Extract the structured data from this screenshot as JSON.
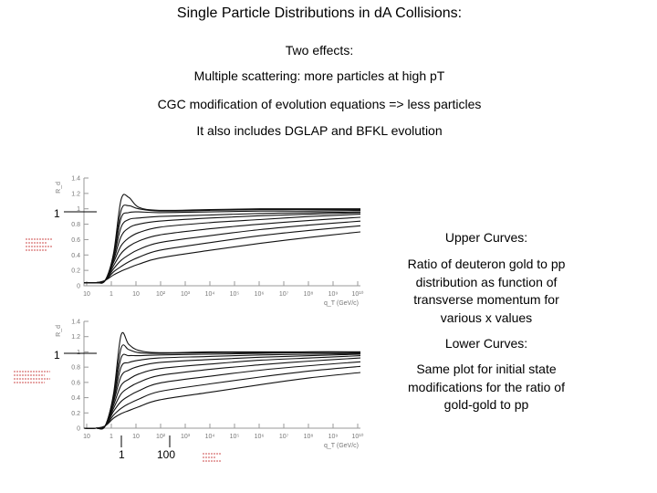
{
  "slide": {
    "title": "Single Particle Distributions in dA Collisions:",
    "lines": [
      "Two effects:",
      "Multiple scattering:  more particles at high pT",
      "CGC modification of evolution equations => less particles",
      "It also includes DGLAP and BFKL evolution"
    ],
    "upper_heading": "Upper Curves:",
    "upper_text": "Ratio of deuteron gold to pp distribution as function of transverse momentum for various x values",
    "lower_heading": "Lower Curves:",
    "lower_text": "Same plot for initial state modifications for the ratio of gold-gold to pp",
    "marker_one_upper": "1",
    "marker_one_lower": "1",
    "marker_x_one": "1",
    "marker_x_hundred": "100"
  },
  "chart_data": [
    {
      "type": "line",
      "ylabel": "R_d",
      "xlabel": "q_T (GeV/c)",
      "xscale": "log",
      "xlim": [
        0.1,
        10000000000.0
      ],
      "ylim": [
        0,
        1.4
      ],
      "yticks": [
        0,
        0.2,
        0.4,
        0.6,
        0.8,
        1,
        1.2,
        1.4
      ],
      "xticks": [
        "10",
        "1",
        "10",
        "10²",
        "10³",
        "10⁴",
        "10⁵",
        "10⁶",
        "10⁷",
        "10⁸",
        "10⁹",
        "10¹⁰"
      ],
      "series": [
        {
          "x": [
            0.1,
            0.3,
            0.7,
            1.5,
            3,
            6,
            15,
            100,
            10000.0,
            1000000.0,
            100000000.0,
            10000000000.0
          ],
          "values": [
            0.04,
            0.04,
            0.07,
            0.42,
            1.12,
            1.15,
            1.02,
            0.98,
            0.99,
            1.0,
            1.0,
            1.0
          ]
        },
        {
          "x": [
            0.1,
            0.3,
            0.7,
            1.5,
            3,
            6,
            15,
            100,
            10000.0,
            1000000.0,
            100000000.0,
            10000000000.0
          ],
          "values": [
            0.04,
            0.04,
            0.07,
            0.4,
            0.98,
            1.04,
            1.0,
            0.97,
            0.98,
            0.99,
            0.99,
            0.99
          ]
        },
        {
          "x": [
            0.1,
            0.3,
            0.7,
            1.5,
            3,
            6,
            15,
            100,
            10000.0,
            1000000.0,
            100000000.0,
            10000000000.0
          ],
          "values": [
            0.04,
            0.04,
            0.07,
            0.38,
            0.88,
            0.95,
            0.96,
            0.95,
            0.96,
            0.97,
            0.97,
            0.98
          ]
        },
        {
          "x": [
            0.1,
            0.3,
            0.7,
            1.5,
            3,
            6,
            15,
            100,
            10000.0,
            1000000.0,
            100000000.0,
            10000000000.0
          ],
          "values": [
            0.04,
            0.04,
            0.07,
            0.36,
            0.76,
            0.86,
            0.88,
            0.9,
            0.92,
            0.94,
            0.95,
            0.96
          ]
        },
        {
          "x": [
            0.1,
            0.3,
            0.7,
            1.5,
            3,
            6,
            15,
            100,
            10000.0,
            1000000.0,
            100000000.0,
            10000000000.0
          ],
          "values": [
            0.04,
            0.04,
            0.07,
            0.33,
            0.64,
            0.75,
            0.8,
            0.84,
            0.88,
            0.91,
            0.93,
            0.95
          ]
        },
        {
          "x": [
            0.1,
            0.3,
            0.7,
            1.5,
            3,
            6,
            15,
            100,
            10000.0,
            1000000.0,
            100000000.0,
            10000000000.0
          ],
          "values": [
            0.04,
            0.04,
            0.07,
            0.3,
            0.52,
            0.62,
            0.69,
            0.76,
            0.82,
            0.86,
            0.9,
            0.93
          ]
        },
        {
          "x": [
            0.1,
            0.3,
            0.7,
            1.5,
            3,
            6,
            15,
            100,
            10000.0,
            1000000.0,
            100000000.0,
            10000000000.0
          ],
          "values": [
            0.04,
            0.04,
            0.07,
            0.26,
            0.42,
            0.51,
            0.58,
            0.66,
            0.74,
            0.8,
            0.85,
            0.89
          ]
        },
        {
          "x": [
            0.1,
            0.3,
            0.7,
            1.5,
            3,
            6,
            15,
            100,
            10000.0,
            1000000.0,
            100000000.0,
            10000000000.0
          ],
          "values": [
            0.04,
            0.04,
            0.07,
            0.22,
            0.33,
            0.4,
            0.47,
            0.56,
            0.65,
            0.73,
            0.79,
            0.84
          ]
        },
        {
          "x": [
            0.1,
            0.3,
            0.7,
            1.5,
            3,
            6,
            15,
            100,
            10000.0,
            1000000.0,
            100000000.0,
            10000000000.0
          ],
          "values": [
            0.04,
            0.04,
            0.07,
            0.18,
            0.25,
            0.31,
            0.37,
            0.46,
            0.56,
            0.65,
            0.72,
            0.78
          ]
        },
        {
          "x": [
            0.1,
            0.3,
            0.7,
            1.5,
            3,
            6,
            15,
            100,
            10000.0,
            1000000.0,
            100000000.0,
            10000000000.0
          ],
          "values": [
            0.04,
            0.04,
            0.07,
            0.14,
            0.19,
            0.23,
            0.28,
            0.36,
            0.46,
            0.55,
            0.63,
            0.7
          ]
        }
      ]
    },
    {
      "type": "line",
      "ylabel": "R_d",
      "xlabel": "q_T (GeV/c)",
      "xscale": "log",
      "xlim": [
        0.1,
        10000000000.0
      ],
      "ylim": [
        0,
        1.4
      ],
      "yticks": [
        0,
        0.2,
        0.4,
        0.6,
        0.8,
        1,
        1.2,
        1.4
      ],
      "xticks": [
        "10",
        "1",
        "10",
        "10²",
        "10³",
        "10⁴",
        "10⁵",
        "10⁶",
        "10⁷",
        "10⁸",
        "10⁹",
        "10¹⁰"
      ],
      "series": [
        {
          "x": [
            0.1,
            0.3,
            0.7,
            1.5,
            3,
            6,
            15,
            100,
            10000.0,
            1000000.0,
            100000000.0,
            10000000000.0
          ],
          "values": [
            0.0,
            0.0,
            0.03,
            0.45,
            1.22,
            1.1,
            1.02,
            0.99,
            1.0,
            1.0,
            1.0,
            1.0
          ]
        },
        {
          "x": [
            0.1,
            0.3,
            0.7,
            1.5,
            3,
            6,
            15,
            100,
            10000.0,
            1000000.0,
            100000000.0,
            10000000000.0
          ],
          "values": [
            0.0,
            0.0,
            0.03,
            0.42,
            1.05,
            1.03,
            0.99,
            0.98,
            0.99,
            0.99,
            1.0,
            1.0
          ]
        },
        {
          "x": [
            0.1,
            0.3,
            0.7,
            1.5,
            3,
            6,
            15,
            100,
            10000.0,
            1000000.0,
            100000000.0,
            10000000000.0
          ],
          "values": [
            0.0,
            0.0,
            0.03,
            0.4,
            0.92,
            0.95,
            0.95,
            0.96,
            0.97,
            0.98,
            0.99,
            0.99
          ]
        },
        {
          "x": [
            0.1,
            0.3,
            0.7,
            1.5,
            3,
            6,
            15,
            100,
            10000.0,
            1000000.0,
            100000000.0,
            10000000000.0
          ],
          "values": [
            0.0,
            0.0,
            0.03,
            0.37,
            0.8,
            0.86,
            0.89,
            0.92,
            0.94,
            0.96,
            0.97,
            0.98
          ]
        },
        {
          "x": [
            0.1,
            0.3,
            0.7,
            1.5,
            3,
            6,
            15,
            100,
            10000.0,
            1000000.0,
            100000000.0,
            10000000000.0
          ],
          "values": [
            0.0,
            0.0,
            0.03,
            0.34,
            0.68,
            0.76,
            0.81,
            0.86,
            0.9,
            0.93,
            0.95,
            0.97
          ]
        },
        {
          "x": [
            0.1,
            0.3,
            0.7,
            1.5,
            3,
            6,
            15,
            100,
            10000.0,
            1000000.0,
            100000000.0,
            10000000000.0
          ],
          "values": [
            0.0,
            0.0,
            0.03,
            0.3,
            0.56,
            0.64,
            0.71,
            0.78,
            0.84,
            0.89,
            0.92,
            0.95
          ]
        },
        {
          "x": [
            0.1,
            0.3,
            0.7,
            1.5,
            3,
            6,
            15,
            100,
            10000.0,
            1000000.0,
            100000000.0,
            10000000000.0
          ],
          "values": [
            0.0,
            0.0,
            0.03,
            0.26,
            0.45,
            0.53,
            0.6,
            0.69,
            0.77,
            0.83,
            0.88,
            0.92
          ]
        },
        {
          "x": [
            0.1,
            0.3,
            0.7,
            1.5,
            3,
            6,
            15,
            100,
            10000.0,
            1000000.0,
            100000000.0,
            10000000000.0
          ],
          "values": [
            0.0,
            0.0,
            0.03,
            0.22,
            0.35,
            0.42,
            0.49,
            0.59,
            0.68,
            0.76,
            0.82,
            0.87
          ]
        },
        {
          "x": [
            0.1,
            0.3,
            0.7,
            1.5,
            3,
            6,
            15,
            100,
            10000.0,
            1000000.0,
            100000000.0,
            10000000000.0
          ],
          "values": [
            0.0,
            0.0,
            0.03,
            0.17,
            0.26,
            0.32,
            0.38,
            0.48,
            0.58,
            0.67,
            0.75,
            0.81
          ]
        },
        {
          "x": [
            0.1,
            0.3,
            0.7,
            1.5,
            3,
            6,
            15,
            100,
            10000.0,
            1000000.0,
            100000000.0,
            10000000000.0
          ],
          "values": [
            0.0,
            0.0,
            0.03,
            0.13,
            0.19,
            0.23,
            0.28,
            0.37,
            0.47,
            0.57,
            0.66,
            0.73
          ]
        }
      ]
    }
  ]
}
